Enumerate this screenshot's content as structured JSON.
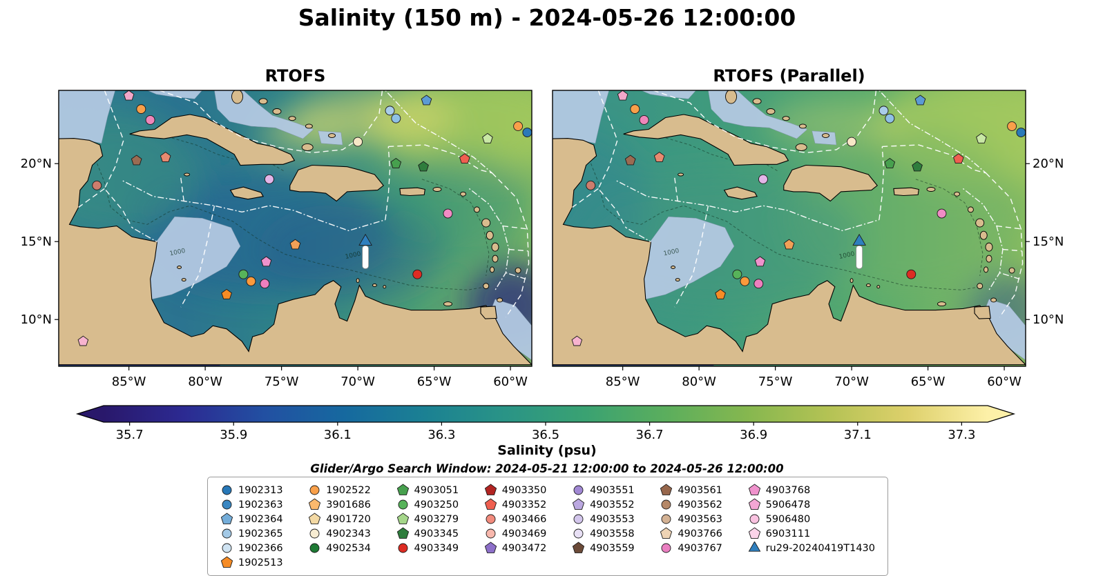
{
  "figure": {
    "title": "Salinity (150 m) - 2024-05-26 12:00:00",
    "search_window_note": "Glider/Argo Search Window: 2024-05-21 12:00:00 to 2024-05-26 12:00:00"
  },
  "chart_data": {
    "type": "map-scatter",
    "projection_extent": {
      "lon_min": -89.6,
      "lon_max": -58.6,
      "lat_min": 7.0,
      "lat_max": 24.7
    },
    "panels": [
      {
        "title": "RTOFS",
        "lat_labels_side": "left",
        "ocean_colors": [
          "#2f7f8e",
          "#2b7390",
          "#2f8487",
          "#4d9e74",
          "#7db763"
        ]
      },
      {
        "title": "RTOFS (Parallel)",
        "lat_labels_side": "right",
        "ocean_colors": [
          "#38908a",
          "#3f9a7d",
          "#57aa6d",
          "#8abd5e"
        ]
      }
    ],
    "x_ticks": [
      {
        "lon": -85,
        "label": "85°W"
      },
      {
        "lon": -80,
        "label": "80°W"
      },
      {
        "lon": -75,
        "label": "75°W"
      },
      {
        "lon": -70,
        "label": "70°W"
      },
      {
        "lon": -65,
        "label": "65°W"
      },
      {
        "lon": -60,
        "label": "60°W"
      }
    ],
    "y_ticks": [
      {
        "lat": 10,
        "label": "10°N"
      },
      {
        "lat": 15,
        "label": "15°N"
      },
      {
        "lat": 20,
        "label": "20°N"
      }
    ],
    "map_colors": {
      "land": "#d8bc8e",
      "coastline": "#000000",
      "shallow_shelf": "#b3c9e2",
      "pacific_deep": "#2c1a6e",
      "eez_line": "#ffffff",
      "river_line": "#a8c4e0"
    },
    "depth_contour_labels": [
      "1000",
      "1000"
    ],
    "colorbar": {
      "label": "Salinity (psu)",
      "tick_values": [
        35.7,
        35.9,
        36.1,
        36.3,
        36.5,
        36.7,
        36.9,
        37.1,
        37.3
      ],
      "value_range": [
        35.65,
        37.35
      ],
      "extend": "both",
      "gradient": [
        "#29186b",
        "#2c2a92",
        "#2250a2",
        "#16699f",
        "#1b8193",
        "#2a9486",
        "#3aa272",
        "#5bae5d",
        "#85b74f",
        "#b3c254",
        "#ddd06b",
        "#fdf0a8"
      ]
    },
    "markers": [
      {
        "lon": -85.0,
        "lat": 24.35,
        "shape": "pentagon",
        "color": "#f2a7c9"
      },
      {
        "lon": -84.2,
        "lat": 23.5,
        "shape": "circle",
        "color": "#f9a04a"
      },
      {
        "lon": -83.6,
        "lat": 22.8,
        "shape": "circle",
        "color": "#ee86ba"
      },
      {
        "lon": -65.5,
        "lat": 24.05,
        "shape": "pentagon",
        "color": "#5b9bd5"
      },
      {
        "lon": -67.9,
        "lat": 23.4,
        "shape": "circle",
        "color": "#a9cde9"
      },
      {
        "lon": -67.5,
        "lat": 22.9,
        "shape": "circle",
        "color": "#8fc1e6"
      },
      {
        "lon": -70.0,
        "lat": 21.4,
        "shape": "circle",
        "color": "#f7e7c6"
      },
      {
        "lon": -61.5,
        "lat": 21.6,
        "shape": "pentagon",
        "color": "#c9e8a5"
      },
      {
        "lon": -59.5,
        "lat": 22.4,
        "shape": "circle",
        "color": "#f9a04a"
      },
      {
        "lon": -58.9,
        "lat": 22.0,
        "shape": "circle",
        "color": "#2a7ab8"
      },
      {
        "lon": -84.5,
        "lat": 20.2,
        "shape": "pentagon",
        "color": "#9b6b52"
      },
      {
        "lon": -82.6,
        "lat": 20.4,
        "shape": "pentagon",
        "color": "#e88a70"
      },
      {
        "lon": -87.1,
        "lat": 18.6,
        "shape": "circle",
        "color": "#cd7d6d"
      },
      {
        "lon": -75.8,
        "lat": 19.0,
        "shape": "circle",
        "color": "#e3b5e8"
      },
      {
        "lon": -67.5,
        "lat": 20.0,
        "shape": "pentagon",
        "color": "#47a04e"
      },
      {
        "lon": -65.7,
        "lat": 19.8,
        "shape": "pentagon",
        "color": "#2f7d3d"
      },
      {
        "lon": -63.0,
        "lat": 20.3,
        "shape": "pentagon",
        "color": "#ef5f50"
      },
      {
        "lon": -64.1,
        "lat": 16.8,
        "shape": "circle",
        "color": "#f18cc5"
      },
      {
        "lon": -74.1,
        "lat": 14.8,
        "shape": "pentagon",
        "color": "#f2a057"
      },
      {
        "lon": -76.0,
        "lat": 13.7,
        "shape": "pentagon",
        "color": "#ef92cc"
      },
      {
        "lon": -77.5,
        "lat": 12.9,
        "shape": "circle",
        "color": "#57b35a"
      },
      {
        "lon": -77.0,
        "lat": 12.45,
        "shape": "circle",
        "color": "#fb9a3c"
      },
      {
        "lon": -76.1,
        "lat": 12.3,
        "shape": "circle",
        "color": "#ee7fbe"
      },
      {
        "lon": -78.6,
        "lat": 11.6,
        "shape": "pentagon",
        "color": "#f68c26"
      },
      {
        "lon": -66.1,
        "lat": 12.9,
        "shape": "circle",
        "color": "#dd2c23"
      },
      {
        "lon": -88.0,
        "lat": 8.6,
        "shape": "pentagon",
        "color": "#f7b3cf"
      }
    ],
    "glider_track": {
      "label": "ru29-20240419T1430",
      "lon": -69.5,
      "lat_head": 15.0,
      "lat_tail": 13.35,
      "head_color": "#2f7fbe",
      "body_color": "#ffffff"
    }
  },
  "legend": {
    "columns": [
      6,
      5,
      5,
      5,
      5,
      5,
      5
    ],
    "entries": [
      {
        "label": "1902313",
        "shape": "circle",
        "color": "#2878b8"
      },
      {
        "label": "1902363",
        "shape": "circle",
        "color": "#3a87c2"
      },
      {
        "label": "1902364",
        "shape": "pentagon",
        "color": "#74add9"
      },
      {
        "label": "1902365",
        "shape": "circle",
        "color": "#a3c9e6"
      },
      {
        "label": "1902366",
        "shape": "circle",
        "color": "#cfe3f2"
      },
      {
        "label": "1902513",
        "shape": "pentagon",
        "color": "#f68c26"
      },
      {
        "label": "1902522",
        "shape": "circle",
        "color": "#f9a04a"
      },
      {
        "label": "3901686",
        "shape": "pentagon",
        "color": "#fbb96d"
      },
      {
        "label": "4901720",
        "shape": "pentagon",
        "color": "#f3d9a4"
      },
      {
        "label": "4902343",
        "shape": "circle",
        "color": "#f7ecd2"
      },
      {
        "label": "4902534",
        "shape": "circle",
        "color": "#1e7a34"
      },
      {
        "label": "4903051",
        "shape": "pentagon",
        "color": "#47a04e"
      },
      {
        "label": "4903250",
        "shape": "circle",
        "color": "#57b35a"
      },
      {
        "label": "4903279",
        "shape": "pentagon",
        "color": "#a5d68a"
      },
      {
        "label": "4903345",
        "shape": "pentagon",
        "color": "#2f7d3d"
      },
      {
        "label": "4903349",
        "shape": "circle",
        "color": "#dd2c23"
      },
      {
        "label": "4903350",
        "shape": "pentagon",
        "color": "#b22422"
      },
      {
        "label": "4903352",
        "shape": "pentagon",
        "color": "#ef5f50"
      },
      {
        "label": "4903466",
        "shape": "circle",
        "color": "#f28b7d"
      },
      {
        "label": "4903469",
        "shape": "circle",
        "color": "#f8b8ad"
      },
      {
        "label": "4903472",
        "shape": "pentagon",
        "color": "#8d6fc9"
      },
      {
        "label": "4903551",
        "shape": "circle",
        "color": "#a188d4"
      },
      {
        "label": "4903552",
        "shape": "pentagon",
        "color": "#bba8e0"
      },
      {
        "label": "4903553",
        "shape": "circle",
        "color": "#d3c6ec"
      },
      {
        "label": "4903558",
        "shape": "circle",
        "color": "#e8e0f5"
      },
      {
        "label": "4903559",
        "shape": "pentagon",
        "color": "#6b4a38"
      },
      {
        "label": "4903561",
        "shape": "pentagon",
        "color": "#97674c"
      },
      {
        "label": "4903562",
        "shape": "circle",
        "color": "#b58868"
      },
      {
        "label": "4903563",
        "shape": "circle",
        "color": "#d4b294"
      },
      {
        "label": "4903766",
        "shape": "pentagon",
        "color": "#eed3b4"
      },
      {
        "label": "4903767",
        "shape": "circle",
        "color": "#ea7fc1"
      },
      {
        "label": "4903768",
        "shape": "pentagon",
        "color": "#ef92cc"
      },
      {
        "label": "5906478",
        "shape": "pentagon",
        "color": "#f4a6d4"
      },
      {
        "label": "5906480",
        "shape": "circle",
        "color": "#f9c2e0"
      },
      {
        "label": "6903111",
        "shape": "pentagon",
        "color": "#fbd4e9"
      },
      {
        "label": "ru29-20240419T1430",
        "shape": "triangle",
        "color": "#2f7fbe"
      }
    ]
  }
}
